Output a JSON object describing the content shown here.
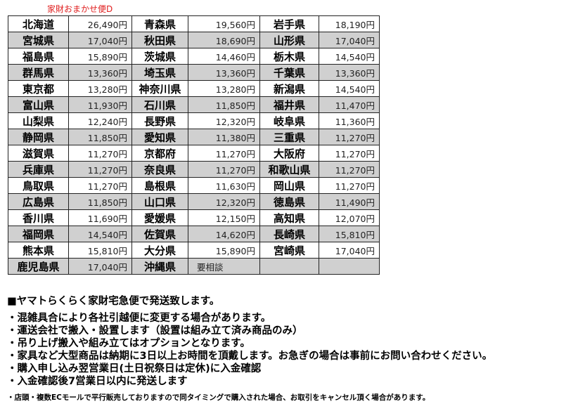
{
  "title": "家財おまかせ便D",
  "rows": [
    [
      [
        "北海道",
        "26,490円"
      ],
      [
        "青森県",
        "19,560円"
      ],
      [
        "岩手県",
        "18,190円"
      ]
    ],
    [
      [
        "宮城県",
        "17,040円"
      ],
      [
        "秋田県",
        "18,690円"
      ],
      [
        "山形県",
        "17,040円"
      ]
    ],
    [
      [
        "福島県",
        "15,890円"
      ],
      [
        "茨城県",
        "14,460円"
      ],
      [
        "栃木県",
        "14,540円"
      ]
    ],
    [
      [
        "群馬県",
        "13,360円"
      ],
      [
        "埼玉県",
        "13,360円"
      ],
      [
        "千葉県",
        "13,360円"
      ]
    ],
    [
      [
        "東京都",
        "13,280円"
      ],
      [
        "神奈川県",
        "13,280円"
      ],
      [
        "新潟県",
        "14,540円"
      ]
    ],
    [
      [
        "富山県",
        "11,930円"
      ],
      [
        "石川県",
        "11,850円"
      ],
      [
        "福井県",
        "11,470円"
      ]
    ],
    [
      [
        "山梨県",
        "12,240円"
      ],
      [
        "長野県",
        "12,320円"
      ],
      [
        "岐阜県",
        "11,360円"
      ]
    ],
    [
      [
        "静岡県",
        "11,850円"
      ],
      [
        "愛知県",
        "11,380円"
      ],
      [
        "三重県",
        "11,270円"
      ]
    ],
    [
      [
        "滋賀県",
        "11,270円"
      ],
      [
        "京都府",
        "11,270円"
      ],
      [
        "大阪府",
        "11,270円"
      ]
    ],
    [
      [
        "兵庫県",
        "11,270円"
      ],
      [
        "奈良県",
        "11,270円"
      ],
      [
        "和歌山県",
        "11,270円"
      ]
    ],
    [
      [
        "鳥取県",
        "11,270円"
      ],
      [
        "島根県",
        "11,630円"
      ],
      [
        "岡山県",
        "11,270円"
      ]
    ],
    [
      [
        "広島県",
        "11,850円"
      ],
      [
        "山口県",
        "12,320円"
      ],
      [
        "徳島県",
        "11,490円"
      ]
    ],
    [
      [
        "香川県",
        "11,690円"
      ],
      [
        "愛媛県",
        "12,150円"
      ],
      [
        "高知県",
        "12,070円"
      ]
    ],
    [
      [
        "福岡県",
        "14,540円"
      ],
      [
        "佐賀県",
        "14,620円"
      ],
      [
        "長崎県",
        "15,810円"
      ]
    ],
    [
      [
        "熊本県",
        "15,810円"
      ],
      [
        "大分県",
        "15,890円"
      ],
      [
        "宮崎県",
        "17,040円"
      ]
    ],
    [
      [
        "鹿児島県",
        "17,040円"
      ],
      [
        "沖縄県",
        "要相談"
      ],
      [
        "",
        ""
      ]
    ]
  ],
  "notes": {
    "heading": "■ヤマトらくらく家財宅急便で発送致します。",
    "items": [
      "・混雑具合により各社引越便に変更する場合があります。",
      "・運送会社で搬入・設置します（設置は組み立て済み商品のみ）",
      "・吊り上げ搬入や組み立てはオプションとなります。",
      "・家具など大型商品は納期に3日以上お時間を頂戴します。お急ぎの場合は事前にお問い合わせください。",
      "・購入申し込み翌営業日(土日祝祭日は定休)に入金確認",
      "・入金確認後7営業日以内に発送します"
    ],
    "small": "・店頭・複数ECモールで平行販売しておりますので同タイミングで購入された場合、お取引をキャンセル頂く場合があります。"
  }
}
